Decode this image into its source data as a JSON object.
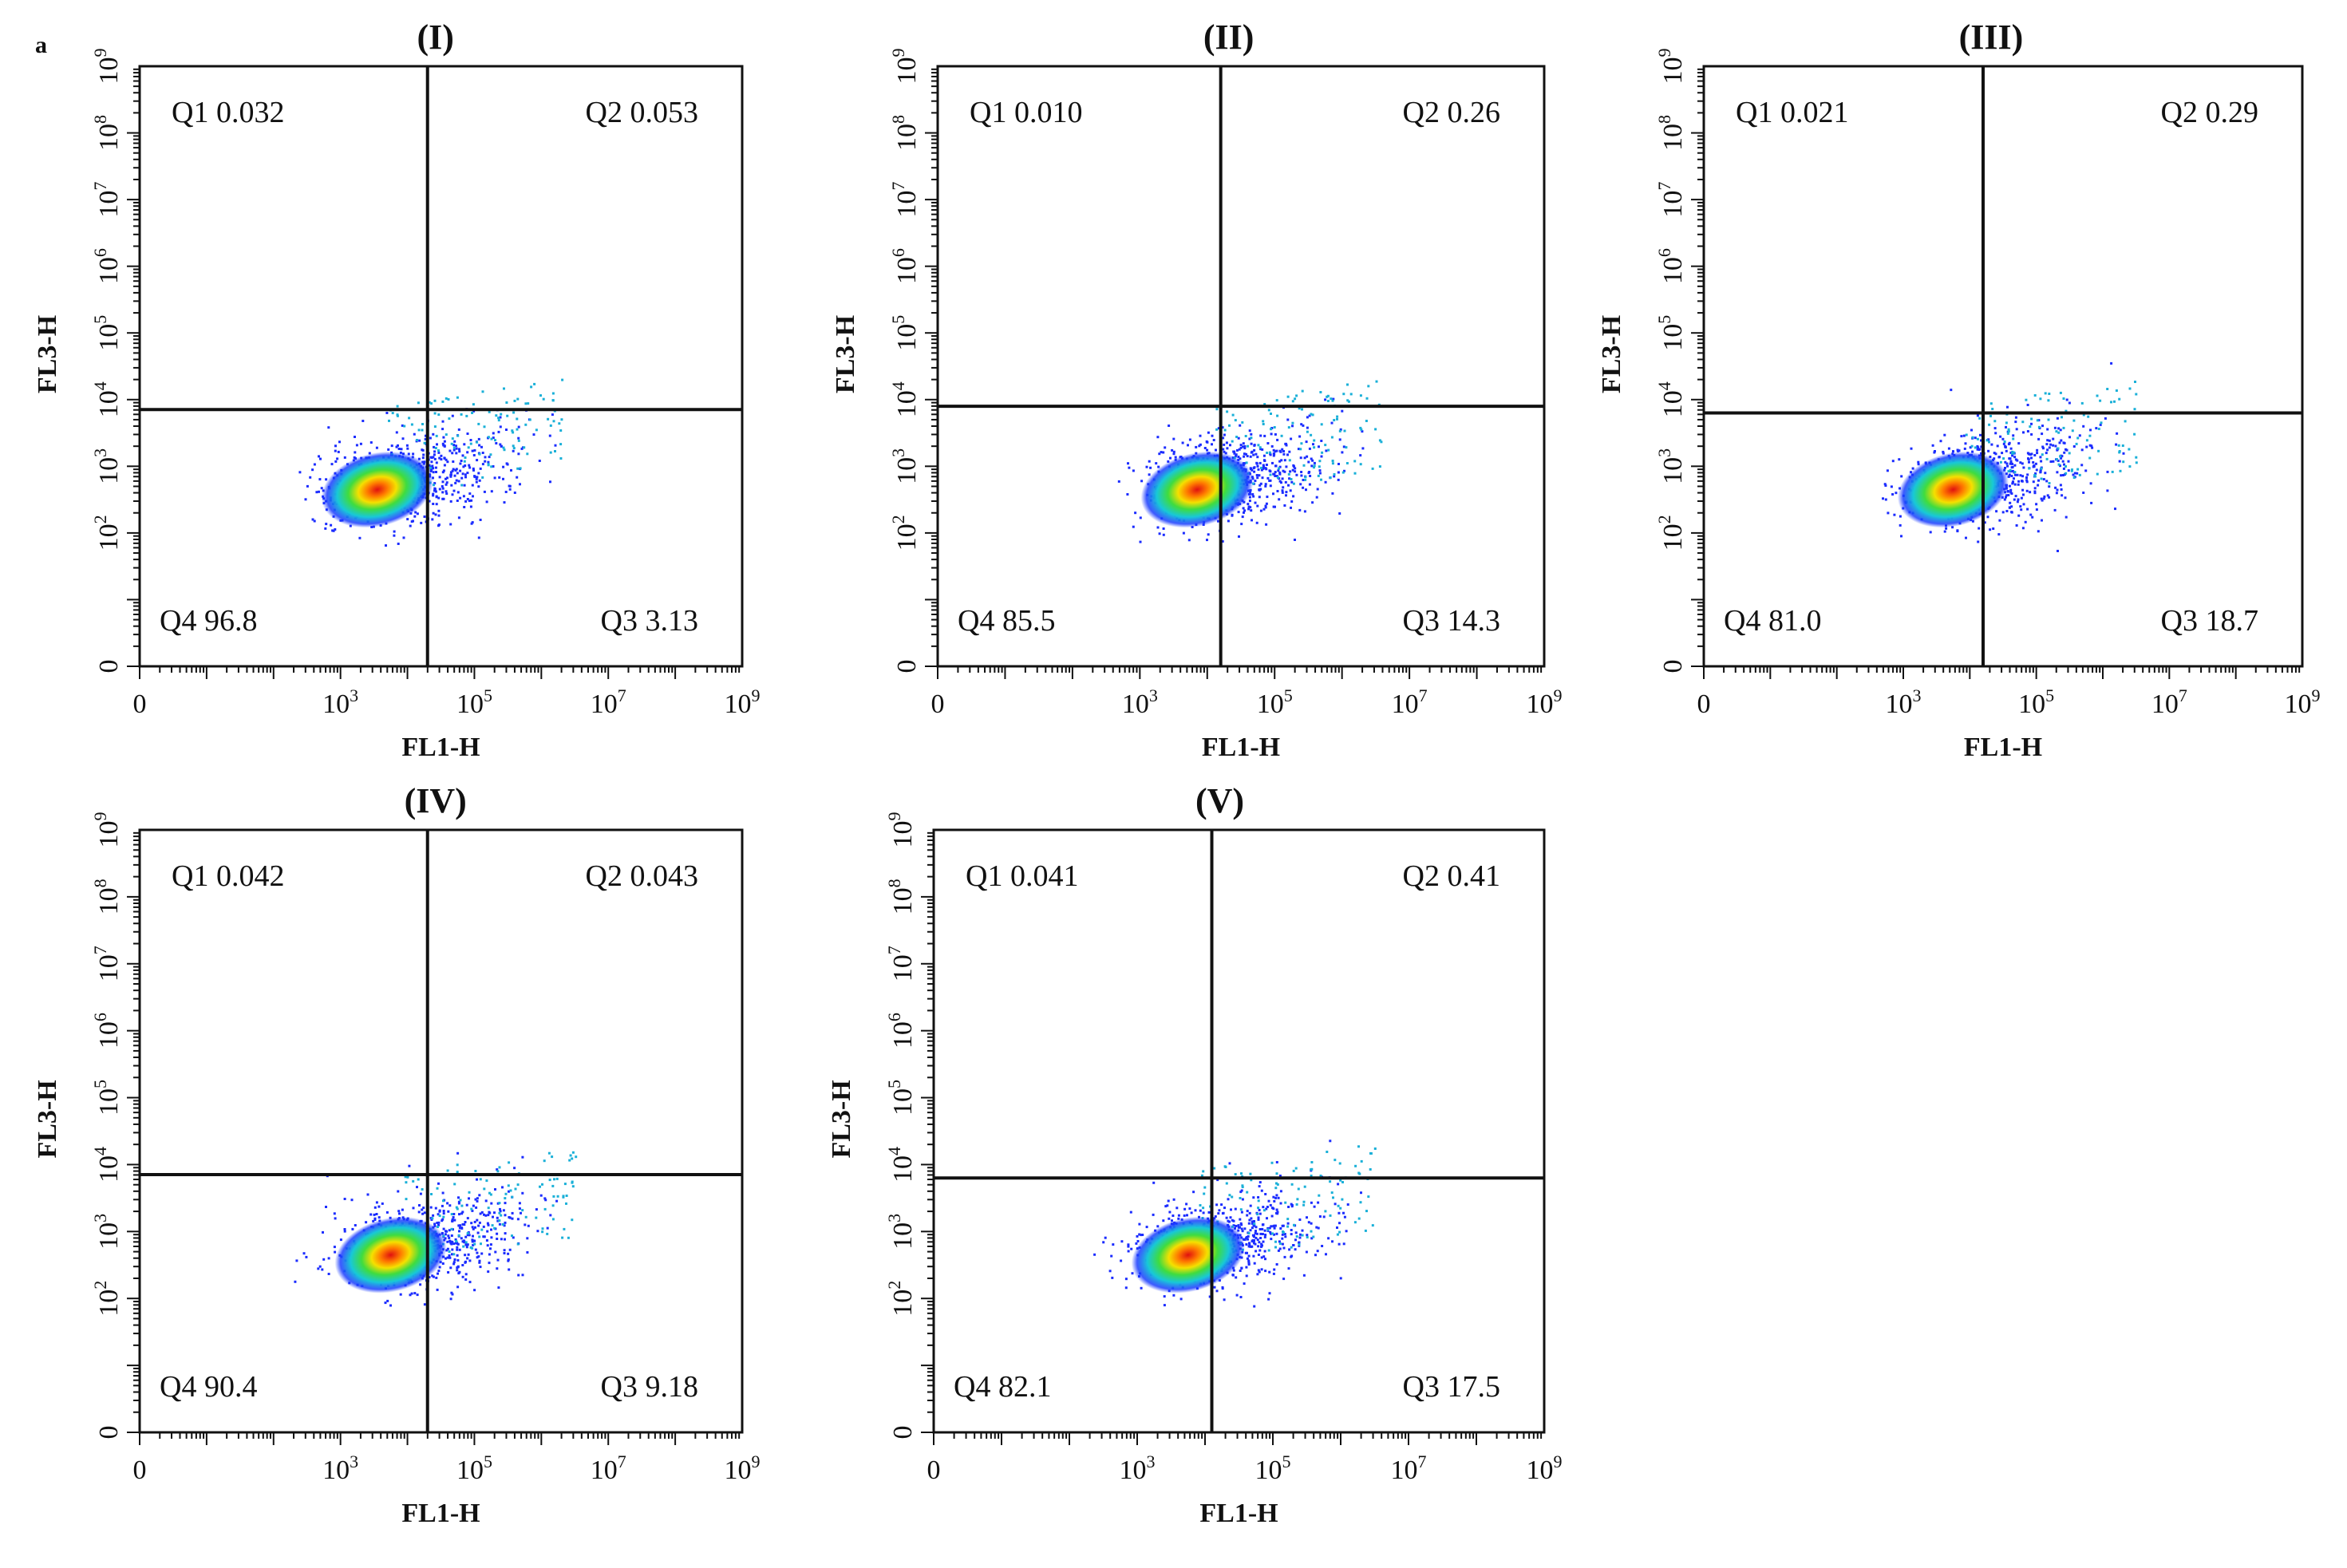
{
  "figure": {
    "corner_label": "a"
  },
  "axes": {
    "xlabel": "FL1-H",
    "ylabel": "FL3-H",
    "x_ticks": [
      {
        "v": 0,
        "base": "0",
        "exp": ""
      },
      {
        "v": 3,
        "base": "10",
        "exp": "3"
      },
      {
        "v": 5,
        "base": "10",
        "exp": "5"
      },
      {
        "v": 7,
        "base": "10",
        "exp": "7"
      },
      {
        "v": 9,
        "base": "10",
        "exp": "9"
      }
    ],
    "y_ticks": [
      {
        "v": 0,
        "base": "0",
        "exp": ""
      },
      {
        "v": 2,
        "base": "10",
        "exp": "2"
      },
      {
        "v": 3,
        "base": "10",
        "exp": "3"
      },
      {
        "v": 4,
        "base": "10",
        "exp": "4"
      },
      {
        "v": 5,
        "base": "10",
        "exp": "5"
      },
      {
        "v": 6,
        "base": "10",
        "exp": "6"
      },
      {
        "v": 7,
        "base": "10",
        "exp": "7"
      },
      {
        "v": 8,
        "base": "10",
        "exp": "8"
      },
      {
        "v": 9,
        "base": "10",
        "exp": "9"
      }
    ],
    "xlim_log10": [
      0,
      9
    ],
    "ylim_log10": [
      0,
      9
    ]
  },
  "chart_data": [
    {
      "type": "scatter",
      "title": "(I)",
      "xlabel": "FL1-H",
      "ylabel": "FL3-H",
      "gate_x_log10": 4.3,
      "gate_y_log10": 3.85,
      "cluster_center_log10": [
        3.4,
        2.6
      ],
      "quadrants": {
        "Q1": "Q1 0.032",
        "Q2": "Q2  0.053",
        "Q3": "Q3 3.13",
        "Q4": "Q4 96.8"
      }
    },
    {
      "type": "scatter",
      "title": "(II)",
      "xlabel": "FL1-H",
      "ylabel": "FL3-H",
      "gate_x_log10": 4.2,
      "gate_y_log10": 3.9,
      "cluster_center_log10": [
        3.7,
        2.6
      ],
      "quadrants": {
        "Q1": "Q1  0.010",
        "Q2": "Q2  0.26",
        "Q3": "Q3  14.3",
        "Q4": "Q4  85.5"
      }
    },
    {
      "type": "scatter",
      "title": "(III)",
      "xlabel": "FL1-H",
      "ylabel": "FL3-H",
      "gate_x_log10": 4.2,
      "gate_y_log10": 3.8,
      "cluster_center_log10": [
        3.6,
        2.6
      ],
      "quadrants": {
        "Q1": "Q1  0.021",
        "Q2": "Q2  0.29",
        "Q3": "Q3  18.7",
        "Q4": "Q4  81.0"
      }
    },
    {
      "type": "scatter",
      "title": "(IV)",
      "xlabel": "FL1-H",
      "ylabel": "FL3-H",
      "gate_x_log10": 4.3,
      "gate_y_log10": 3.85,
      "cluster_center_log10": [
        3.6,
        2.6
      ],
      "quadrants": {
        "Q1": "Q1  0.042",
        "Q2": "Q2  0.043",
        "Q3": "Q3  9.18",
        "Q4": "Q4  90.4"
      }
    },
    {
      "type": "scatter",
      "title": "(V)",
      "xlabel": "FL1-H",
      "ylabel": "FL3-H",
      "gate_x_log10": 4.1,
      "gate_y_log10": 3.8,
      "cluster_center_log10": [
        3.6,
        2.6
      ],
      "quadrants": {
        "Q1": "Q1  0.041",
        "Q2": "Q2  0.41",
        "Q3": "Q3  17.5",
        "Q4": "Q4  82.1"
      }
    }
  ]
}
